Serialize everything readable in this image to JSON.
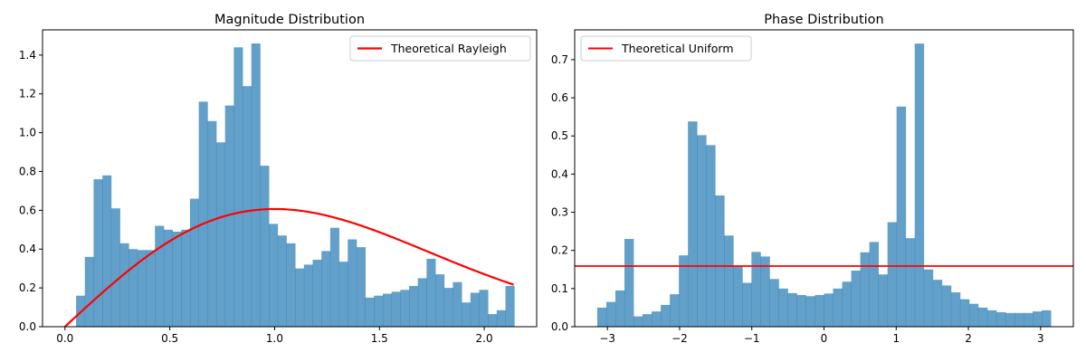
{
  "chart_data": [
    {
      "type": "bar",
      "title": "Magnitude Distribution",
      "xlabel": "",
      "ylabel": "",
      "xlim": [
        -0.107,
        2.25
      ],
      "ylim": [
        0,
        1.53
      ],
      "xticks": [
        0.0,
        0.5,
        1.0,
        1.5,
        2.0
      ],
      "xtick_labels": [
        "0.0",
        "0.5",
        "1.0",
        "1.5",
        "2.0"
      ],
      "yticks": [
        0.0,
        0.2,
        0.4,
        0.6,
        0.8,
        1.0,
        1.2,
        1.4
      ],
      "ytick_labels": [
        "0.0",
        "0.2",
        "0.4",
        "0.6",
        "0.8",
        "1.0",
        "1.2",
        "1.4"
      ],
      "hist": {
        "bin_start": 0.053,
        "bin_width": 0.0418,
        "values": [
          0.16,
          0.36,
          0.76,
          0.78,
          0.61,
          0.43,
          0.4,
          0.395,
          0.395,
          0.52,
          0.5,
          0.49,
          0.5,
          0.66,
          1.16,
          1.06,
          0.95,
          1.14,
          1.44,
          1.24,
          1.46,
          0.83,
          0.53,
          0.47,
          0.43,
          0.3,
          0.32,
          0.345,
          0.39,
          0.51,
          0.335,
          0.45,
          0.41,
          0.15,
          0.16,
          0.17,
          0.18,
          0.19,
          0.21,
          0.25,
          0.35,
          0.27,
          0.2,
          0.23,
          0.125,
          0.175,
          0.19,
          0.065,
          0.085,
          0.21
        ],
        "color": "#1f77b4",
        "opacity": 0.7
      },
      "curve": {
        "name": "Theoretical Rayleigh",
        "function": "rayleigh",
        "sigma": 1.0,
        "x_range": [
          0.0,
          2.14
        ],
        "color": "#ff0000"
      },
      "legend": {
        "position": "upper right",
        "entries": [
          "Theoretical Rayleigh"
        ]
      },
      "grid": false
    },
    {
      "type": "bar",
      "title": "Phase Distribution",
      "xlabel": "",
      "ylabel": "",
      "xlim": [
        -3.454,
        3.454
      ],
      "ylim": [
        0,
        0.778
      ],
      "xticks": [
        -3,
        -2,
        -1,
        0,
        1,
        2,
        3
      ],
      "xtick_labels": [
        "−3",
        "−2",
        "−1",
        "0",
        "1",
        "2",
        "3"
      ],
      "yticks": [
        0.0,
        0.1,
        0.2,
        0.3,
        0.4,
        0.5,
        0.6,
        0.7
      ],
      "ytick_labels": [
        "0.0",
        "0.1",
        "0.2",
        "0.3",
        "0.4",
        "0.5",
        "0.6",
        "0.7"
      ],
      "hist": {
        "bin_start": -3.1416,
        "bin_width": 0.12566,
        "values": [
          0.05,
          0.065,
          0.095,
          0.23,
          0.027,
          0.033,
          0.04,
          0.057,
          0.085,
          0.187,
          0.538,
          0.502,
          0.476,
          0.344,
          0.239,
          0.158,
          0.115,
          0.196,
          0.184,
          0.125,
          0.1,
          0.088,
          0.083,
          0.08,
          0.083,
          0.087,
          0.1,
          0.118,
          0.147,
          0.195,
          0.222,
          0.137,
          0.274,
          0.577,
          0.232,
          0.742,
          0.15,
          0.123,
          0.108,
          0.09,
          0.072,
          0.06,
          0.05,
          0.043,
          0.038,
          0.036,
          0.036,
          0.036,
          0.04,
          0.043
        ],
        "color": "#1f77b4",
        "opacity": 0.7
      },
      "curve": {
        "name": "Theoretical Uniform",
        "function": "constant",
        "value": 0.159,
        "x_range": [
          -3.454,
          3.454
        ],
        "color": "#ff0000"
      },
      "legend": {
        "position": "upper left",
        "entries": [
          "Theoretical Uniform"
        ]
      },
      "grid": false
    }
  ]
}
